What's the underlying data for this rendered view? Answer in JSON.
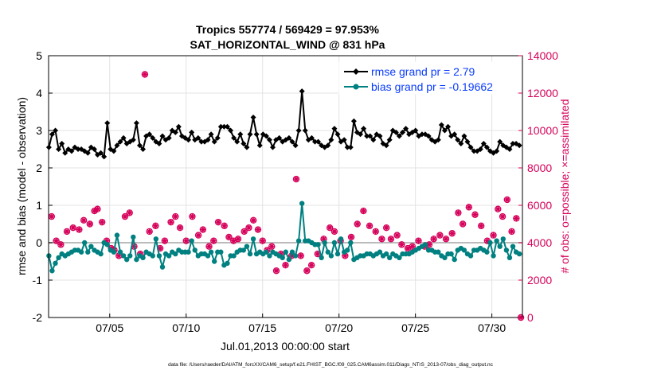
{
  "chart_data": {
    "type": "line",
    "title_line1": "Tropics 557774 / 569429 = 97.953%",
    "title_line2": "SAT_HORIZONTAL_WIND @ 831 hPa",
    "xlabel": "Jul.01,2013 00:00:00 start",
    "ylabel_left": "rmse and bias (model - observation)",
    "ylabel_right": "# of obs: o=possible; ×=assimilated",
    "footer": "data file: /Users/raeder/DAI/ATM_forcXX/CAM6_setup/f.e21.FHIST_BGC.f09_025.CAM6assim.011/Diags_NTrS_2013-07/obs_diag_output.nc",
    "xlim": [
      1.0,
      32.0
    ],
    "ylim_left": [
      -2,
      5
    ],
    "ylim_right": [
      0,
      14000
    ],
    "x_ticks": [
      {
        "x": 5,
        "label": "07/05"
      },
      {
        "x": 10,
        "label": "07/10"
      },
      {
        "x": 15,
        "label": "07/15"
      },
      {
        "x": 20,
        "label": "07/20"
      },
      {
        "x": 25,
        "label": "07/25"
      },
      {
        "x": 30,
        "label": "07/30"
      }
    ],
    "y_left_ticks": [
      "-2",
      "-1",
      "0",
      "1",
      "2",
      "3",
      "4",
      "5"
    ],
    "y_right_ticks": [
      "0",
      "2000",
      "4000",
      "6000",
      "8000",
      "10000",
      "12000",
      "14000"
    ],
    "grid": true,
    "legend_position": "top-right",
    "colors": {
      "rmse": "#000000",
      "bias": "#008080",
      "obs": "#d6005a",
      "zero_line": "#bbbbbb",
      "legend_text": "#0a3cff"
    },
    "series": [
      {
        "name": "rmse grand pr = 2.79",
        "key": "rmse",
        "axis": "left",
        "values": [
          2.55,
          2.9,
          3.0,
          2.5,
          2.65,
          2.4,
          2.5,
          2.45,
          2.55,
          2.5,
          2.5,
          2.45,
          2.4,
          2.55,
          2.5,
          2.35,
          2.4,
          2.3,
          3.2,
          2.5,
          2.45,
          2.6,
          2.7,
          2.8,
          2.65,
          2.7,
          2.75,
          3.2,
          2.6,
          2.5,
          2.85,
          2.9,
          2.8,
          2.7,
          2.65,
          2.85,
          2.75,
          2.8,
          3.0,
          2.95,
          3.1,
          2.85,
          2.8,
          2.75,
          2.95,
          2.75,
          2.8,
          2.7,
          2.7,
          2.75,
          2.9,
          2.7,
          2.8,
          3.1,
          3.1,
          3.1,
          3.0,
          2.8,
          2.7,
          2.9,
          2.65,
          2.55,
          2.9,
          3.35,
          2.9,
          2.6,
          2.9,
          2.85,
          2.75,
          2.55,
          2.75,
          2.8,
          2.7,
          2.75,
          2.8,
          2.7,
          2.6,
          3.0,
          4.05,
          3.0,
          2.75,
          2.8,
          2.7,
          2.7,
          2.6,
          2.55,
          2.6,
          2.75,
          3.05,
          2.9,
          2.7,
          2.75,
          2.55,
          2.55,
          3.25,
          2.95,
          2.9,
          3.05,
          2.85,
          2.85,
          2.75,
          2.9,
          2.85,
          2.65,
          2.6,
          2.75,
          3.0,
          2.95,
          2.85,
          2.95,
          3.05,
          2.9,
          2.95,
          3.0,
          2.85,
          2.9,
          2.9,
          2.85,
          2.75,
          2.7,
          2.75,
          3.15,
          3.0,
          3.1,
          2.85,
          2.9,
          2.75,
          2.65,
          2.85,
          2.7,
          2.55,
          2.45,
          2.45,
          2.5,
          2.65,
          2.55,
          2.45,
          2.4,
          2.45,
          2.7,
          2.6,
          2.55,
          2.5,
          2.65,
          2.65,
          2.6
        ]
      },
      {
        "name": "bias grand pr = -0.19662",
        "key": "bias",
        "axis": "left",
        "values": [
          -0.35,
          -0.75,
          -0.55,
          -0.4,
          -0.3,
          -0.35,
          -0.3,
          -0.25,
          -0.2,
          -0.2,
          -0.25,
          0.0,
          -0.25,
          -0.1,
          -0.2,
          -0.25,
          -0.3,
          0.0,
          -0.05,
          -0.2,
          -0.25,
          0.2,
          -0.25,
          -0.35,
          -0.45,
          -0.35,
          0.15,
          -0.45,
          -0.35,
          -0.4,
          -0.25,
          -0.3,
          -0.35,
          0.1,
          -0.35,
          -0.65,
          -0.3,
          -0.35,
          -0.25,
          -0.3,
          -0.2,
          -0.25,
          -0.25,
          -0.25,
          0.05,
          -0.2,
          -0.35,
          -0.3,
          -0.3,
          -0.35,
          -0.25,
          -0.5,
          -0.25,
          -0.25,
          -0.6,
          -0.55,
          -0.35,
          -0.35,
          -0.25,
          -0.2,
          -0.2,
          -0.1,
          -0.3,
          0.1,
          -0.3,
          -0.25,
          -0.3,
          -0.25,
          -0.35,
          -0.25,
          -0.3,
          -0.35,
          -0.4,
          -0.25,
          -0.45,
          -0.25,
          -0.35,
          0.05,
          1.05,
          0.05,
          0.05,
          0.0,
          -0.05,
          -0.05,
          -0.4,
          0.0,
          -0.25,
          -0.35,
          0.0,
          -0.3,
          0.1,
          -0.25,
          -0.2,
          0.0,
          -0.45,
          -0.4,
          -0.35,
          -0.35,
          -0.3,
          -0.3,
          -0.35,
          -0.3,
          -0.25,
          -0.35,
          -0.3,
          -0.4,
          -0.3,
          -0.35,
          -0.4,
          -0.3,
          -0.3,
          -0.3,
          -0.25,
          -0.2,
          -0.15,
          -0.1,
          -0.05,
          -0.2,
          -0.2,
          -0.25,
          -0.25,
          -0.35,
          -0.4,
          -0.3,
          -0.3,
          -0.45,
          -0.2,
          -0.15,
          -0.2,
          -0.3,
          -0.35,
          -0.2,
          -0.2,
          -0.15,
          -0.2,
          -0.25,
          0.0,
          -0.35,
          0.05,
          -0.1,
          0.1,
          -0.2,
          -0.4,
          -0.1,
          -0.25,
          -0.3
        ]
      },
      {
        "name": "obs assimilated",
        "key": "obs",
        "axis": "right",
        "points": [
          [
            1.2,
            5400
          ],
          [
            1.5,
            4100
          ],
          [
            1.8,
            3900
          ],
          [
            2.2,
            4600
          ],
          [
            2.6,
            4800
          ],
          [
            3.0,
            4700
          ],
          [
            3.3,
            5200
          ],
          [
            3.7,
            5000
          ],
          [
            4.0,
            5700
          ],
          [
            4.2,
            5800
          ],
          [
            4.5,
            5100
          ],
          [
            4.8,
            4100
          ],
          [
            5.1,
            3700
          ],
          [
            5.3,
            3600
          ],
          [
            5.6,
            3300
          ],
          [
            6.0,
            5400
          ],
          [
            6.3,
            5600
          ],
          [
            6.6,
            3800
          ],
          [
            7.0,
            3400
          ],
          [
            7.3,
            13000
          ],
          [
            7.6,
            4600
          ],
          [
            8.0,
            4900
          ],
          [
            8.3,
            3700
          ],
          [
            8.6,
            4100
          ],
          [
            9.0,
            5100
          ],
          [
            9.3,
            5400
          ],
          [
            9.6,
            4800
          ],
          [
            10.0,
            4100
          ],
          [
            10.4,
            5400
          ],
          [
            10.8,
            4400
          ],
          [
            11.1,
            4700
          ],
          [
            11.5,
            3800
          ],
          [
            11.8,
            4100
          ],
          [
            12.1,
            5100
          ],
          [
            12.5,
            4900
          ],
          [
            12.8,
            4300
          ],
          [
            13.1,
            4100
          ],
          [
            13.4,
            4200
          ],
          [
            13.8,
            4600
          ],
          [
            14.1,
            4800
          ],
          [
            14.4,
            5200
          ],
          [
            14.7,
            4700
          ],
          [
            15.0,
            4100
          ],
          [
            15.3,
            3600
          ],
          [
            15.6,
            3800
          ],
          [
            15.9,
            2500
          ],
          [
            16.2,
            3400
          ],
          [
            16.5,
            2800
          ],
          [
            16.9,
            3300
          ],
          [
            17.2,
            7400
          ],
          [
            17.5,
            3300
          ],
          [
            17.9,
            2500
          ],
          [
            18.2,
            2800
          ],
          [
            18.6,
            3400
          ],
          [
            19.0,
            4200
          ],
          [
            19.4,
            4800
          ],
          [
            19.7,
            4600
          ],
          [
            20.1,
            4100
          ],
          [
            20.4,
            3300
          ],
          [
            20.8,
            4300
          ],
          [
            21.2,
            5000
          ],
          [
            21.6,
            5700
          ],
          [
            22.0,
            4900
          ],
          [
            22.4,
            4600
          ],
          [
            22.8,
            4200
          ],
          [
            23.1,
            4800
          ],
          [
            23.4,
            4200
          ],
          [
            23.8,
            4400
          ],
          [
            24.1,
            3900
          ],
          [
            24.5,
            3700
          ],
          [
            24.8,
            3800
          ],
          [
            25.2,
            4100
          ],
          [
            25.6,
            3800
          ],
          [
            25.9,
            3900
          ],
          [
            26.2,
            4200
          ],
          [
            26.6,
            4400
          ],
          [
            27.0,
            4200
          ],
          [
            27.4,
            4500
          ],
          [
            27.8,
            5600
          ],
          [
            28.1,
            5000
          ],
          [
            28.5,
            5900
          ],
          [
            28.9,
            5500
          ],
          [
            29.3,
            4900
          ],
          [
            29.7,
            4100
          ],
          [
            30.1,
            4400
          ],
          [
            30.4,
            5800
          ],
          [
            30.7,
            5400
          ],
          [
            31.0,
            6300
          ],
          [
            31.3,
            4600
          ],
          [
            31.6,
            5300
          ],
          [
            31.9,
            0
          ]
        ]
      }
    ],
    "possible_points_sample": "hollow circles coincide with assimilated markers"
  }
}
